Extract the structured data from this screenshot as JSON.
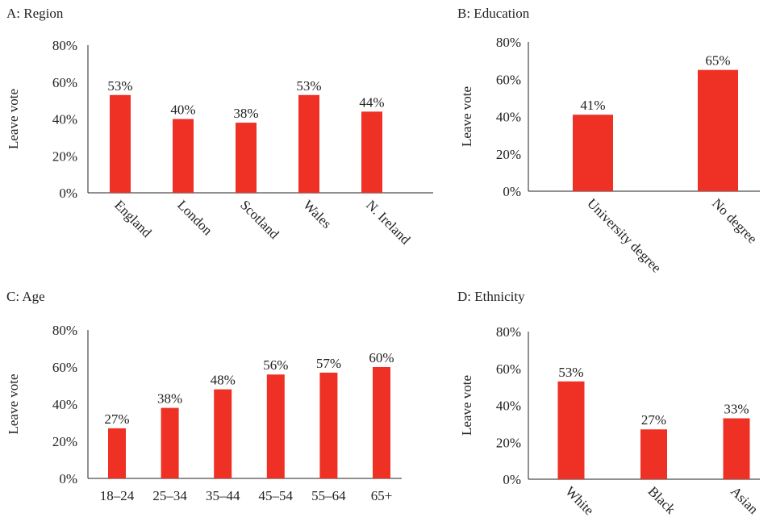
{
  "colors": {
    "bar": "#ee3124",
    "axis": "#222222"
  },
  "chart_data": [
    {
      "type": "bar",
      "title": "A: Region",
      "ylabel": "Leave vote",
      "ylim": [
        0,
        80
      ],
      "yticks": [
        "0%",
        "20%",
        "40%",
        "60%",
        "80%"
      ],
      "categories": [
        "England",
        "London",
        "Scotland",
        "Wales",
        "N. Ireland"
      ],
      "values": [
        53,
        40,
        38,
        53,
        44
      ],
      "data_labels": [
        "53%",
        "40%",
        "38%",
        "53%",
        "44%"
      ],
      "rotated_categories": true
    },
    {
      "type": "bar",
      "title": "B: Education",
      "ylabel": "Leave vote",
      "ylim": [
        0,
        80
      ],
      "yticks": [
        "0%",
        "20%",
        "40%",
        "60%",
        "80%"
      ],
      "categories": [
        "University degree",
        "No degree"
      ],
      "values": [
        41,
        65
      ],
      "data_labels": [
        "41%",
        "65%"
      ],
      "rotated_categories": true
    },
    {
      "type": "bar",
      "title": "C: Age",
      "ylabel": "Leave vote",
      "ylim": [
        0,
        80
      ],
      "yticks": [
        "0%",
        "20%",
        "40%",
        "60%",
        "80%"
      ],
      "categories": [
        "18–24",
        "25–34",
        "35–44",
        "45–54",
        "55–64",
        "65+"
      ],
      "values": [
        27,
        38,
        48,
        56,
        57,
        60
      ],
      "data_labels": [
        "27%",
        "38%",
        "48%",
        "56%",
        "57%",
        "60%"
      ],
      "rotated_categories": false
    },
    {
      "type": "bar",
      "title": "D: Ethnicity",
      "ylabel": "Leave vote",
      "ylim": [
        0,
        80
      ],
      "yticks": [
        "0%",
        "20%",
        "40%",
        "60%",
        "80%"
      ],
      "categories": [
        "White",
        "Black",
        "Asian"
      ],
      "values": [
        53,
        27,
        33
      ],
      "data_labels": [
        "53%",
        "27%",
        "33%"
      ],
      "rotated_categories": true
    }
  ]
}
